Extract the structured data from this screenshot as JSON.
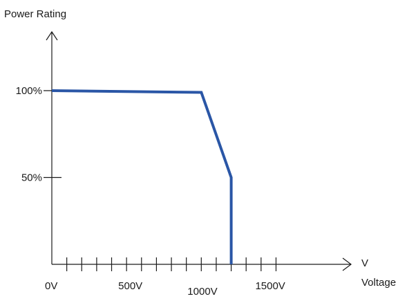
{
  "chart_data": {
    "type": "line",
    "title": "",
    "ylabel": "Power Rating",
    "xlabel": "Voltage",
    "x_unit_label": "V",
    "xlim": [
      0,
      2000
    ],
    "ylim": [
      0,
      100
    ],
    "x_ticks": [
      {
        "value": 0,
        "label": "0V"
      },
      {
        "value": 500,
        "label": "500V"
      },
      {
        "value": 1000,
        "label": "1000V"
      },
      {
        "value": 1500,
        "label": "1500V"
      }
    ],
    "y_ticks": [
      {
        "value": 50,
        "label": "50%"
      },
      {
        "value": 100,
        "label": "100%"
      }
    ],
    "x_minor_tick_step": 100,
    "x_minor_tick_max": 1500,
    "series": [
      {
        "color": "#2a56a6",
        "points": [
          {
            "x": 0,
            "y": 100
          },
          {
            "x": 1000,
            "y": 99
          },
          {
            "x": 1200,
            "y": 50
          },
          {
            "x": 1200,
            "y": 0
          }
        ]
      }
    ],
    "grid": false,
    "legend": "none"
  },
  "colors": {
    "axis": "#1a1a1a",
    "line": "#2a56a6"
  }
}
